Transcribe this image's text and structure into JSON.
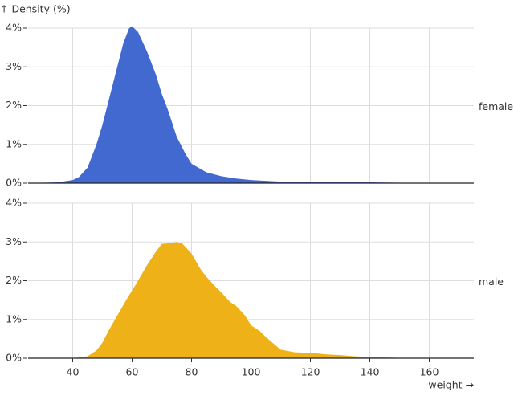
{
  "chart_data": [
    {
      "type": "area",
      "facet": "female",
      "ylabel": "↑ Density (%)",
      "color": "#4269d0",
      "x": [
        25,
        30,
        35,
        40,
        42,
        45,
        48,
        50,
        52,
        55,
        57,
        59,
        60,
        62,
        65,
        68,
        70,
        72,
        75,
        78,
        80,
        85,
        90,
        95,
        100,
        110,
        120,
        130,
        140,
        150,
        160,
        175
      ],
      "values": [
        0,
        0.01,
        0.02,
        0.08,
        0.15,
        0.4,
        1.0,
        1.5,
        2.1,
        3.0,
        3.6,
        4.0,
        4.05,
        3.9,
        3.4,
        2.8,
        2.3,
        1.9,
        1.2,
        0.75,
        0.5,
        0.28,
        0.18,
        0.12,
        0.08,
        0.04,
        0.03,
        0.02,
        0.02,
        0.01,
        0.01,
        0.01
      ],
      "xlim": [
        25,
        175
      ],
      "ylim": [
        0,
        4
      ],
      "yticks": [
        {
          "value": 0,
          "label": "0%"
        },
        {
          "value": 1,
          "label": "1%"
        },
        {
          "value": 2,
          "label": "2%"
        },
        {
          "value": 3,
          "label": "3%"
        },
        {
          "value": 4,
          "label": "4%"
        }
      ],
      "grid": true
    },
    {
      "type": "area",
      "facet": "male",
      "xlabel": "weight →",
      "color": "#efb118",
      "x": [
        25,
        40,
        45,
        48,
        50,
        52,
        55,
        58,
        60,
        62,
        65,
        68,
        70,
        73,
        75,
        77,
        80,
        83,
        85,
        88,
        90,
        93,
        95,
        98,
        100,
        103,
        105,
        108,
        110,
        115,
        120,
        125,
        130,
        135,
        140,
        150,
        160,
        175
      ],
      "values": [
        0,
        0,
        0.05,
        0.2,
        0.4,
        0.7,
        1.1,
        1.5,
        1.75,
        2.0,
        2.4,
        2.75,
        2.95,
        2.97,
        3.0,
        2.95,
        2.7,
        2.3,
        2.1,
        1.85,
        1.7,
        1.45,
        1.35,
        1.1,
        0.85,
        0.7,
        0.55,
        0.35,
        0.22,
        0.15,
        0.14,
        0.1,
        0.08,
        0.05,
        0.03,
        0.01,
        0.01,
        0
      ],
      "xlim": [
        25,
        175
      ],
      "ylim": [
        0,
        4
      ],
      "xticks": [
        40,
        60,
        80,
        100,
        120,
        140,
        160
      ],
      "yticks": [
        {
          "value": 0,
          "label": "0%"
        },
        {
          "value": 1,
          "label": "1%"
        },
        {
          "value": 2,
          "label": "2%"
        },
        {
          "value": 3,
          "label": "3%"
        },
        {
          "value": 4,
          "label": "4%"
        }
      ],
      "grid": true
    }
  ]
}
